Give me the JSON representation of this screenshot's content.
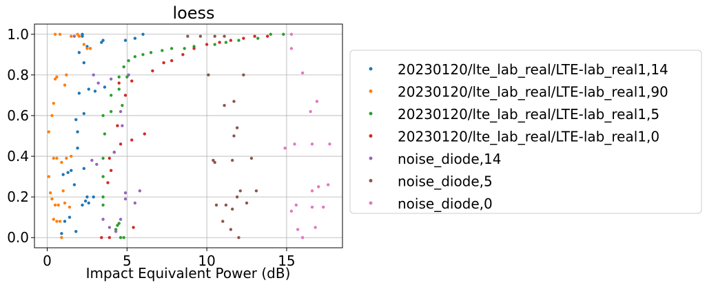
{
  "chart_data": {
    "type": "scatter",
    "title": "loess",
    "xlabel": "Impact Equivalent Power (dB)",
    "ylabel": "",
    "xlim": [
      -0.8,
      18.5
    ],
    "ylim": [
      -0.05,
      1.05
    ],
    "xticks": [
      0,
      5,
      10,
      15
    ],
    "yticks": [
      0.0,
      0.2,
      0.4,
      0.6,
      0.8,
      1.0
    ],
    "xtick_labels": [
      "0",
      "5",
      "10",
      "15"
    ],
    "ytick_labels": [
      "0.0",
      "0.2",
      "0.4",
      "0.6",
      "0.8",
      "1.0"
    ],
    "grid": true,
    "legend_position": "right",
    "series": [
      {
        "name": "20230120/lte_lab_real/LTE-lab_real1,14",
        "color": "#1f77b4",
        "points": [
          [
            0.9,
            0.02
          ],
          [
            1.1,
            0.08
          ],
          [
            1.4,
            0.1
          ],
          [
            1.8,
            0.03
          ],
          [
            2.2,
            0.16
          ],
          [
            2.5,
            0.2
          ],
          [
            2.6,
            0.17
          ],
          [
            2.9,
            0.2
          ],
          [
            2.4,
            0.18
          ],
          [
            1.7,
            0.26
          ],
          [
            1.3,
            0.32
          ],
          [
            1.0,
            0.31
          ],
          [
            1.5,
            0.33
          ],
          [
            2.3,
            0.34
          ],
          [
            1.9,
            0.44
          ],
          [
            1.9,
            0.52
          ],
          [
            1.8,
            0.58
          ],
          [
            2.3,
            0.61
          ],
          [
            2.0,
            0.71
          ],
          [
            2.6,
            0.73
          ],
          [
            3.6,
            0.74
          ],
          [
            3.0,
            0.72
          ],
          [
            2.3,
            0.86
          ],
          [
            2.0,
            0.91
          ],
          [
            2.7,
            0.93
          ],
          [
            2.5,
            0.94
          ],
          [
            3.4,
            0.96
          ],
          [
            4.9,
            0.97
          ],
          [
            5.5,
            0.98
          ],
          [
            6.0,
            1.0
          ],
          [
            2.2,
            1.0
          ],
          [
            3.5,
            0.97
          ],
          [
            2.2,
            0.99
          ]
        ]
      },
      {
        "name": "20230120/lte_lab_real/LTE-lab_real1,90",
        "color": "#ff7f0e",
        "points": [
          [
            0.1,
            0.3
          ],
          [
            0.2,
            0.22
          ],
          [
            0.3,
            0.19
          ],
          [
            0.4,
            0.09
          ],
          [
            0.6,
            0.08
          ],
          [
            0.8,
            0.08
          ],
          [
            0.5,
            0.16
          ],
          [
            0.7,
            0.16
          ],
          [
            1.1,
            0.17
          ],
          [
            1.4,
            0.15
          ],
          [
            0.9,
            0.0
          ],
          [
            1.0,
            0.23
          ],
          [
            0.4,
            0.39
          ],
          [
            0.6,
            0.39
          ],
          [
            0.9,
            0.37
          ],
          [
            1.2,
            0.39
          ],
          [
            1.5,
            0.4
          ],
          [
            0.3,
            0.6
          ],
          [
            0.4,
            0.66
          ],
          [
            0.5,
            0.78
          ],
          [
            0.6,
            0.79
          ],
          [
            1.1,
            0.75
          ],
          [
            1.2,
            0.8
          ],
          [
            0.1,
            0.52
          ],
          [
            0.5,
            1.0
          ],
          [
            0.8,
            1.0
          ],
          [
            1.9,
            1.0
          ],
          [
            2.3,
            0.95
          ],
          [
            2.5,
            0.93
          ],
          [
            2.7,
            0.93
          ],
          [
            1.5,
            0.99
          ],
          [
            2.0,
            0.99
          ]
        ]
      },
      {
        "name": "20230120/lte_lab_real/LTE-lab_real1,5",
        "color": "#2ca02c",
        "points": [
          [
            3.5,
            0.16
          ],
          [
            3.5,
            0.2
          ],
          [
            3.5,
            0.3
          ],
          [
            3.5,
            0.39
          ],
          [
            3.6,
            0.51
          ],
          [
            3.5,
            0.6
          ],
          [
            4.0,
            0.62
          ],
          [
            4.0,
            0.7
          ],
          [
            4.5,
            0.73
          ],
          [
            4.5,
            0.79
          ],
          [
            4.8,
            0.84
          ],
          [
            5.1,
            0.87
          ],
          [
            5.5,
            0.89
          ],
          [
            6.0,
            0.9
          ],
          [
            6.5,
            0.91
          ],
          [
            7.2,
            0.92
          ],
          [
            7.8,
            0.93
          ],
          [
            8.6,
            0.93
          ],
          [
            9.2,
            0.94
          ],
          [
            10.5,
            0.95
          ],
          [
            11.2,
            0.96
          ],
          [
            12.0,
            0.97
          ],
          [
            13.2,
            0.98
          ],
          [
            14.0,
            1.0
          ],
          [
            14.8,
            1.0
          ],
          [
            4.4,
            0.06
          ],
          [
            4.6,
            0.0
          ],
          [
            4.8,
            0.0
          ],
          [
            4.3,
            0.04
          ],
          [
            4.5,
            0.07
          ],
          [
            4.7,
            0.65
          ],
          [
            5.0,
            0.79
          ]
        ]
      },
      {
        "name": "20230120/lte_lab_real/LTE-lab_real1,0",
        "color": "#d62728",
        "points": [
          [
            3.4,
            0.0
          ],
          [
            3.9,
            0.0
          ],
          [
            5.4,
            0.05
          ],
          [
            3.8,
            0.27
          ],
          [
            4.0,
            0.33
          ],
          [
            3.9,
            0.39
          ],
          [
            4.2,
            0.42
          ],
          [
            4.6,
            0.46
          ],
          [
            5.3,
            0.48
          ],
          [
            6.1,
            0.51
          ],
          [
            4.4,
            0.55
          ],
          [
            4.9,
            0.7
          ],
          [
            5.3,
            0.77
          ],
          [
            6.6,
            0.82
          ],
          [
            7.3,
            0.86
          ],
          [
            7.8,
            0.87
          ],
          [
            8.5,
            0.9
          ],
          [
            9.2,
            0.93
          ],
          [
            10.0,
            0.95
          ],
          [
            10.8,
            0.96
          ],
          [
            11.5,
            0.97
          ],
          [
            12.3,
            0.98
          ],
          [
            13.0,
            0.99
          ],
          [
            13.8,
            0.99
          ],
          [
            4.5,
            0.76
          ]
        ]
      },
      {
        "name": "noise_diode,14",
        "color": "#9467bd",
        "points": [
          [
            1.7,
            0.99
          ],
          [
            2.9,
            0.8
          ],
          [
            3.2,
            0.76
          ],
          [
            4.0,
            0.78
          ],
          [
            4.7,
            0.55
          ],
          [
            5.1,
            0.8
          ],
          [
            4.6,
            0.62
          ],
          [
            3.1,
            0.36
          ],
          [
            4.2,
            0.42
          ],
          [
            3.5,
            0.09
          ],
          [
            3.9,
            0.05
          ],
          [
            4.3,
            0.03
          ],
          [
            4.6,
            0.09
          ],
          [
            4.9,
            0.19
          ],
          [
            4.9,
            0.22
          ],
          [
            5.5,
            0.17
          ],
          [
            5.8,
            0.23
          ],
          [
            2.8,
            0.38
          ]
        ]
      },
      {
        "name": "noise_diode,5",
        "color": "#8c564b",
        "points": [
          [
            8.8,
            0.99
          ],
          [
            9.6,
            0.99
          ],
          [
            10.5,
            0.99
          ],
          [
            11.1,
            0.99
          ],
          [
            10.1,
            0.8
          ],
          [
            12.3,
            0.8
          ],
          [
            11.1,
            0.65
          ],
          [
            11.7,
            0.67
          ],
          [
            11.7,
            0.5
          ],
          [
            11.9,
            0.54
          ],
          [
            10.5,
            0.37
          ],
          [
            10.4,
            0.38
          ],
          [
            11.6,
            0.38
          ],
          [
            12.8,
            0.39
          ],
          [
            10.6,
            0.16
          ],
          [
            11.2,
            0.16
          ],
          [
            11.6,
            0.14
          ],
          [
            11.9,
            0.2
          ],
          [
            12.1,
            0.23
          ],
          [
            12.5,
            0.17
          ],
          [
            13.1,
            0.23
          ],
          [
            11.0,
            0.08
          ],
          [
            11.5,
            0.04
          ],
          [
            12.0,
            0.0
          ]
        ]
      },
      {
        "name": "noise_diode,0",
        "color": "#e377c2",
        "points": [
          [
            15.3,
            1.0
          ],
          [
            15.3,
            0.93
          ],
          [
            16.0,
            0.81
          ],
          [
            16.5,
            0.62
          ],
          [
            16.9,
            0.67
          ],
          [
            14.9,
            0.44
          ],
          [
            15.5,
            0.46
          ],
          [
            16.6,
            0.46
          ],
          [
            17.7,
            0.46
          ],
          [
            15.3,
            0.13
          ],
          [
            15.6,
            0.16
          ],
          [
            16.6,
            0.15
          ],
          [
            17.3,
            0.15
          ],
          [
            16.6,
            0.23
          ],
          [
            17.0,
            0.25
          ],
          [
            17.6,
            0.26
          ],
          [
            15.7,
            0.04
          ],
          [
            16.8,
            0.05
          ],
          [
            16.0,
            0.0
          ]
        ]
      }
    ]
  }
}
